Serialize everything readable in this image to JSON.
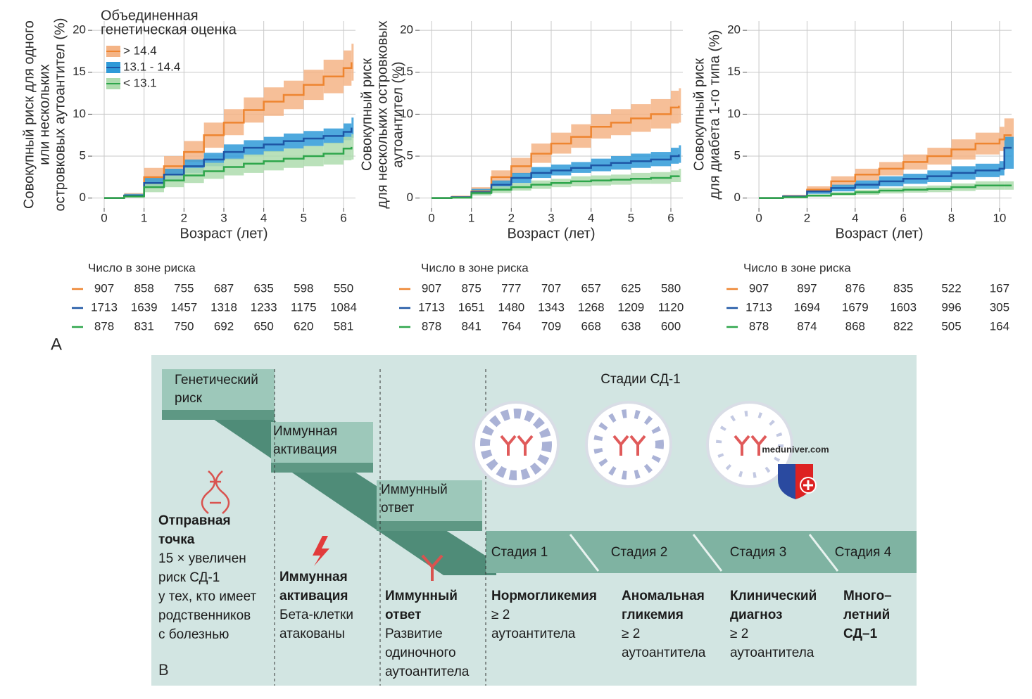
{
  "panel_label": "A",
  "chart_data": [
    {
      "type": "line",
      "ylabel": [
        "Совокупный риск для одного",
        "или нескольких",
        "островковых аутоантител (%)"
      ],
      "xlabel": "Возраст (лет)",
      "x": [
        0,
        0.5,
        1,
        1.5,
        2,
        2.5,
        3,
        3.5,
        4,
        4.5,
        5,
        5.5,
        6,
        6.2
      ],
      "xlim": [
        -0.3,
        6.3
      ],
      "xticks": [
        0,
        1,
        2,
        3,
        4,
        5,
        6
      ],
      "ylim": [
        -1.2,
        21.1
      ],
      "yticks": [
        0,
        5,
        10,
        15,
        20
      ],
      "grid": true,
      "legend": "upper left",
      "legend_title": [
        "Объединенная",
        "генетическая оценка"
      ],
      "series": [
        {
          "name": "> 14.4",
          "color": "#ee8530",
          "band_color": "#f4b486",
          "values": [
            0,
            0.3,
            2.5,
            3.8,
            5.5,
            7.5,
            9,
            10.5,
            11.5,
            12.3,
            13.5,
            14.5,
            15.5,
            16.2
          ],
          "lower": [
            0,
            0.1,
            1.5,
            2.7,
            4.3,
            6,
            7.5,
            9,
            9.8,
            10.6,
            11.7,
            12.5,
            13.4,
            14
          ],
          "upper": [
            0,
            0.6,
            3.6,
            5,
            6.8,
            9,
            10.6,
            12,
            13.2,
            14,
            15.3,
            16.5,
            17.6,
            18.4
          ]
        },
        {
          "name": "13.1 - 14.4",
          "color": "#1e56a5",
          "band_color": "#2f9ad8",
          "values": [
            0,
            0.3,
            1.8,
            2.8,
            3.8,
            4.6,
            5.5,
            6,
            6.4,
            6.8,
            7.1,
            7.4,
            7.9,
            8.4
          ],
          "lower": [
            0,
            0.1,
            1.2,
            2.1,
            3,
            3.8,
            4.6,
            5.1,
            5.5,
            5.9,
            6.2,
            6.5,
            6.9,
            7.2
          ],
          "upper": [
            0,
            0.5,
            2.4,
            3.5,
            4.6,
            5.4,
            6.4,
            6.9,
            7.3,
            7.7,
            8,
            8.3,
            8.9,
            9.6
          ]
        },
        {
          "name": "< 13.1",
          "color": "#2ea64b",
          "band_color": "#aedcae",
          "values": [
            0,
            0.2,
            1.3,
            2.1,
            2.7,
            3.2,
            3.7,
            4.1,
            4.4,
            4.7,
            5,
            5.3,
            5.9,
            6.1
          ],
          "lower": [
            0,
            0.05,
            0.7,
            1.3,
            1.8,
            2.3,
            2.7,
            3,
            3.3,
            3.6,
            3.8,
            4,
            4.5,
            4.6
          ],
          "upper": [
            0,
            0.4,
            1.9,
            2.9,
            3.6,
            4.2,
            4.7,
            5.2,
            5.6,
            5.9,
            6.2,
            6.6,
            7.3,
            7.6
          ]
        }
      ],
      "risk_table": {
        "title": "Число в зоне риска",
        "rows": [
          [
            907,
            858,
            755,
            687,
            635,
            598,
            550
          ],
          [
            1713,
            1639,
            1457,
            1318,
            1233,
            1175,
            1084
          ],
          [
            878,
            831,
            750,
            692,
            650,
            620,
            581
          ]
        ]
      }
    },
    {
      "type": "line",
      "ylabel": [
        "Совокупный риск",
        "для нескольких островковых",
        "аутоантител (%)"
      ],
      "xlabel": "Возраст (лет)",
      "x": [
        0,
        0.5,
        1,
        1.5,
        2,
        2.5,
        3,
        3.5,
        4,
        4.5,
        5,
        5.5,
        6,
        6.2
      ],
      "xlim": [
        -0.3,
        6.3
      ],
      "xticks": [
        0,
        1,
        2,
        3,
        4,
        5,
        6
      ],
      "ylim": [
        -1.2,
        21.1
      ],
      "yticks": [
        0,
        5,
        10,
        15,
        20
      ],
      "grid": true,
      "series": [
        {
          "color": "#ee8530",
          "band_color": "#f4b486",
          "values": [
            0,
            0.1,
            0.8,
            2.5,
            3.8,
            5.3,
            6.5,
            7.3,
            8.5,
            9,
            9.5,
            10,
            10.8,
            11
          ],
          "lower": [
            0,
            0,
            0.4,
            1.8,
            2.9,
            4.2,
            5.3,
            6,
            7.1,
            7.5,
            7.9,
            8.3,
            8.9,
            9
          ],
          "upper": [
            0,
            0.3,
            1.3,
            3.3,
            4.8,
            6.5,
            7.8,
            8.8,
            10,
            10.6,
            11.2,
            11.8,
            12.8,
            13.1
          ]
        },
        {
          "color": "#1e56a5",
          "band_color": "#2f9ad8",
          "values": [
            0,
            0.1,
            0.7,
            1.6,
            2.4,
            3,
            3.3,
            3.6,
            3.9,
            4.2,
            4.4,
            4.6,
            5,
            5.2
          ],
          "lower": [
            0,
            0,
            0.4,
            1.1,
            1.8,
            2.4,
            2.7,
            3,
            3.2,
            3.4,
            3.6,
            3.8,
            4.1,
            4.2
          ],
          "upper": [
            0,
            0.2,
            1.1,
            2.1,
            3,
            3.7,
            4,
            4.3,
            4.7,
            5,
            5.3,
            5.5,
            6,
            6.3
          ]
        },
        {
          "color": "#2ea64b",
          "band_color": "#aedcae",
          "values": [
            0,
            0.05,
            0.6,
            1,
            1.3,
            1.6,
            1.8,
            2,
            2.1,
            2.2,
            2.3,
            2.4,
            2.6,
            2.7
          ],
          "lower": [
            0,
            0,
            0.3,
            0.6,
            0.9,
            1.1,
            1.3,
            1.4,
            1.5,
            1.6,
            1.7,
            1.7,
            1.9,
            1.9
          ],
          "upper": [
            0,
            0.15,
            0.9,
            1.4,
            1.8,
            2.1,
            2.3,
            2.6,
            2.7,
            2.8,
            3,
            3.1,
            3.3,
            3.5
          ]
        }
      ],
      "risk_table": {
        "title": "Число в зоне риска",
        "rows": [
          [
            907,
            875,
            777,
            707,
            657,
            625,
            580
          ],
          [
            1713,
            1651,
            1480,
            1343,
            1268,
            1209,
            1120
          ],
          [
            878,
            841,
            764,
            709,
            668,
            638,
            600
          ]
        ]
      }
    },
    {
      "type": "line",
      "ylabel": [
        "Совокупный риск",
        "для диабета 1-го типа (%)"
      ],
      "xlabel": "Возраст (лет)",
      "x": [
        0,
        1,
        2,
        3,
        4,
        5,
        6,
        7,
        8,
        9,
        10,
        10.2,
        10.5
      ],
      "xlim": [
        -0.5,
        10.5
      ],
      "xticks": [
        0,
        2,
        4,
        6,
        8,
        10
      ],
      "ylim": [
        -1.2,
        21.1
      ],
      "yticks": [
        0,
        5,
        10,
        15,
        20
      ],
      "grid": true,
      "series": [
        {
          "color": "#ee8530",
          "band_color": "#f4b486",
          "values": [
            0,
            0.2,
            1,
            2,
            2.8,
            3.5,
            4.3,
            5,
            5.8,
            6.5,
            7,
            7.5,
            7.5
          ],
          "lower": [
            0,
            0.1,
            0.6,
            1.4,
            2.1,
            2.7,
            3.4,
            4,
            4.6,
            5.2,
            5.6,
            5.8,
            5.8
          ],
          "upper": [
            0,
            0.4,
            1.4,
            2.6,
            3.5,
            4.3,
            5.2,
            6,
            7,
            7.8,
            8.5,
            9.5,
            9.5
          ]
        },
        {
          "color": "#1e56a5",
          "band_color": "#2f9ad8",
          "values": [
            0,
            0.2,
            0.8,
            1.2,
            1.6,
            2,
            2.3,
            2.6,
            3,
            3.3,
            3.5,
            6,
            6
          ],
          "lower": [
            0,
            0.1,
            0.5,
            0.8,
            1.1,
            1.4,
            1.7,
            1.9,
            2.2,
            2.5,
            2.7,
            3.5,
            3.5
          ],
          "upper": [
            0,
            0.3,
            1.1,
            1.6,
            2.1,
            2.6,
            2.9,
            3.3,
            3.8,
            4.1,
            4.4,
            7.3,
            7.3
          ]
        },
        {
          "color": "#2ea64b",
          "band_color": "#aedcae",
          "values": [
            0,
            0.1,
            0.3,
            0.5,
            0.7,
            0.9,
            1,
            1.1,
            1.3,
            1.5,
            1.5,
            1.5,
            1.5
          ],
          "lower": [
            0,
            0,
            0.15,
            0.3,
            0.4,
            0.55,
            0.65,
            0.7,
            0.85,
            1,
            1,
            1,
            1
          ],
          "upper": [
            0,
            0.2,
            0.45,
            0.7,
            1,
            1.25,
            1.4,
            1.5,
            1.75,
            2,
            2,
            2,
            2
          ]
        }
      ],
      "risk_table": {
        "title": "Число в зоне риска",
        "rows": [
          [
            907,
            897,
            876,
            835,
            522,
            167
          ],
          [
            1713,
            1694,
            1679,
            1603,
            996,
            305
          ],
          [
            878,
            874,
            868,
            822,
            505,
            164
          ]
        ]
      }
    }
  ],
  "diagram": {
    "label": "B",
    "steps": [
      [
        "Генетический",
        "риск"
      ],
      [
        "Иммунная",
        "активация"
      ],
      [
        "Иммунный",
        "ответ"
      ]
    ],
    "stages_title": "Стадии СД-1",
    "stages": [
      "Стадия 1",
      "Стадия 2",
      "Стадия 3",
      "Стадия 4"
    ],
    "columns": [
      {
        "title": [
          "Отправная",
          "точка"
        ],
        "text": [
          "15 × увеличен",
          "риск СД-1",
          "у тех, кто имеет",
          "родственников",
          "с болезнью"
        ]
      },
      {
        "title": [
          "Иммунная",
          "активация"
        ],
        "text": [
          "Бета-клетки",
          "атакованы"
        ]
      },
      {
        "title": [
          "Иммунный",
          "ответ"
        ],
        "text": [
          "Развитие",
          "одиночного",
          "аутоантитела"
        ]
      },
      {
        "title": [
          "Нормогликемия"
        ],
        "text": [
          "≥ 2",
          "аутоантитела"
        ]
      },
      {
        "title": [
          "Аномальная",
          "гликемия"
        ],
        "text": [
          "≥ 2",
          "аутоантитела"
        ]
      },
      {
        "title": [
          "Клинический",
          "диагноз"
        ],
        "text": [
          "≥ 2",
          "аутоантитела"
        ]
      },
      {
        "title": [
          "Много–",
          "летний",
          "СД–1"
        ]
      }
    ],
    "watermark": "meduniver.com"
  }
}
